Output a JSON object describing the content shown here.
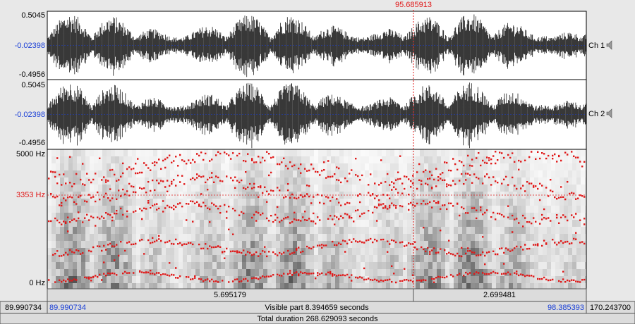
{
  "cursor_time": "95.685913",
  "channels": [
    {
      "max": "0.5045",
      "mid": "-0.02398",
      "min": "-0.4956",
      "label": "Ch 1"
    },
    {
      "max": "0.5045",
      "mid": "-0.02398",
      "min": "-0.4956",
      "label": "Ch 2"
    }
  ],
  "spectrogram": {
    "max": "5000 Hz",
    "cursor": "3353 Hz",
    "min": "0 Hz"
  },
  "selection_row": {
    "left": "5.695179",
    "right": "2.699481"
  },
  "window_row": {
    "start": "89.990734",
    "visible_start": "89.990734",
    "visible": "Visible part 8.394659 seconds",
    "visible_end": "98.385393",
    "end": "170.243700"
  },
  "total": "Total duration 268.629093 seconds"
}
